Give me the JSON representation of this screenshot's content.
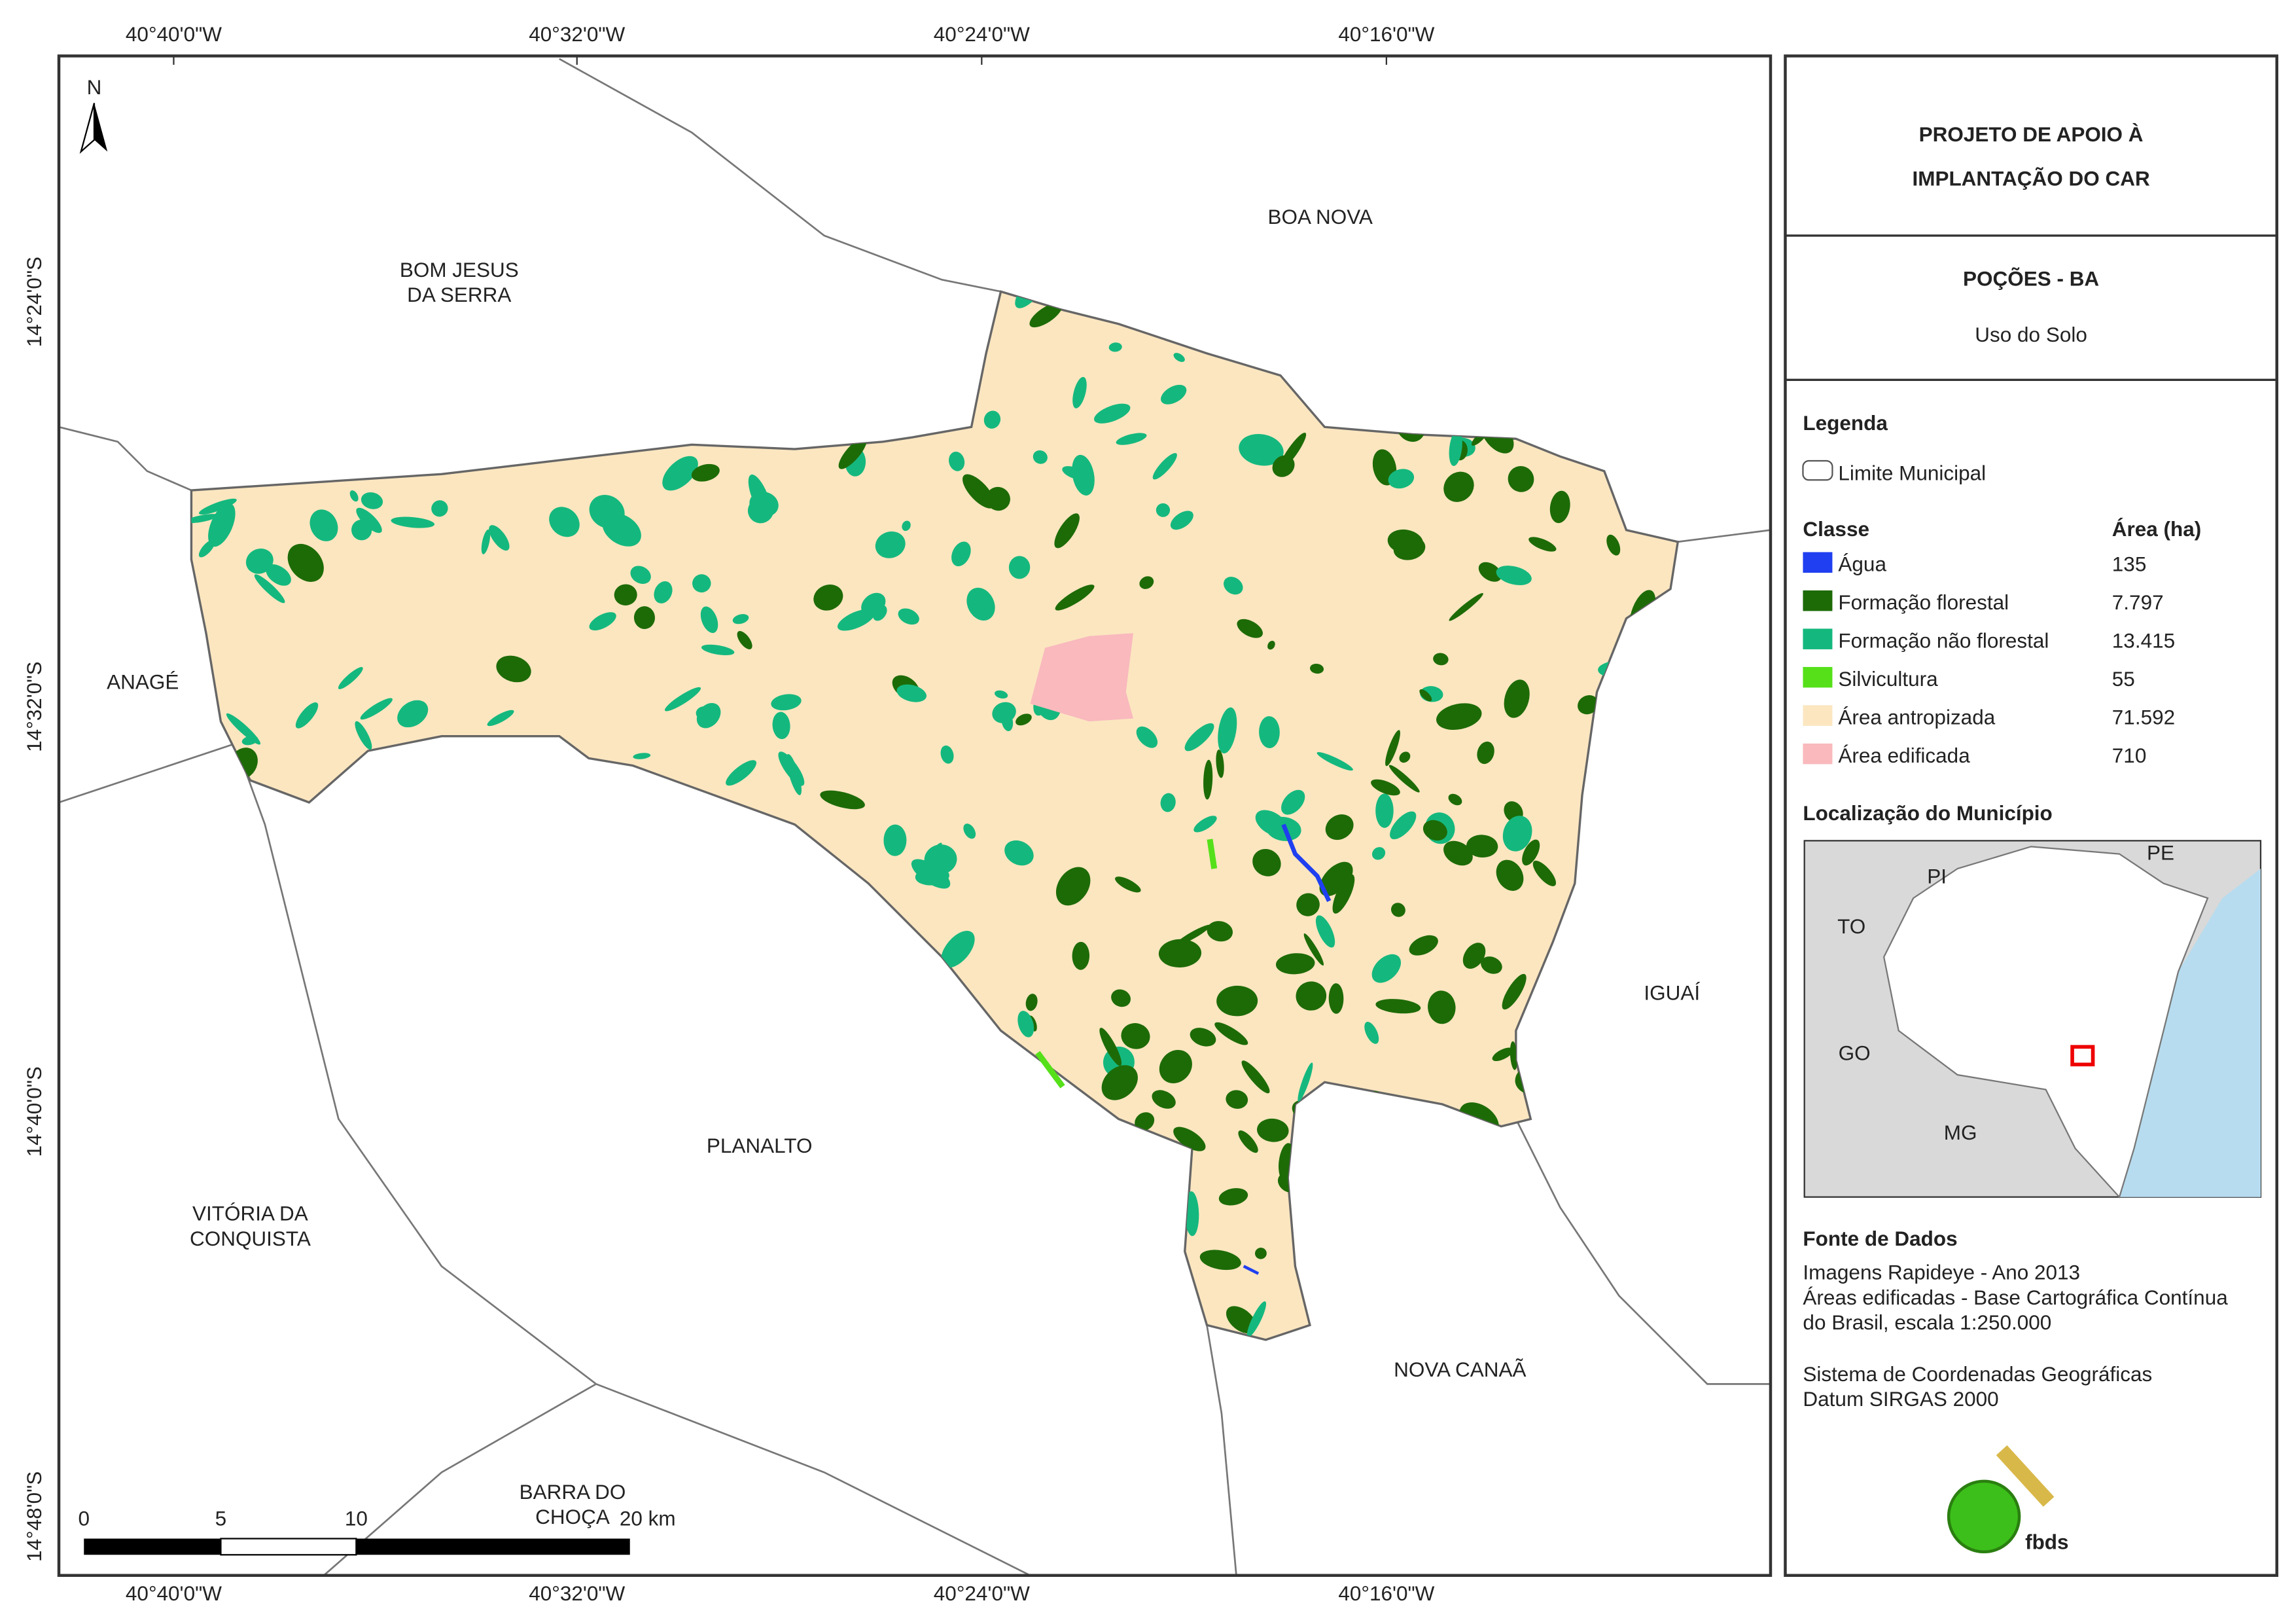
{
  "map": {
    "coordinates": {
      "top": [
        "40°40'0\"W",
        "40°32'0\"W",
        "40°24'0\"W",
        "40°16'0\"W"
      ],
      "bottom": [
        "40°40'0\"W",
        "40°32'0\"W",
        "40°24'0\"W",
        "40°16'0\"W"
      ],
      "left": [
        "14°24'0\"S",
        "14°32'0\"S",
        "14°40'0\"S",
        "14°48'0\"S"
      ]
    },
    "places": [
      {
        "lines": [
          "BOM JESUS",
          "DA SERRA"
        ]
      },
      {
        "lines": [
          "BOA NOVA"
        ]
      },
      {
        "lines": [
          "ANAGÉ"
        ]
      },
      {
        "lines": [
          "IGUAÍ"
        ]
      },
      {
        "lines": [
          "PLANALTO"
        ]
      },
      {
        "lines": [
          "VITÓRIA DA",
          "CONQUISTA"
        ]
      },
      {
        "lines": [
          "NOVA CANAÃ"
        ]
      },
      {
        "lines": [
          "BARRA DO",
          "CHOÇA"
        ]
      }
    ],
    "north": "N",
    "scale_bar": [
      "0",
      "5",
      "10",
      "20 km"
    ]
  },
  "panel": {
    "title": [
      "PROJETO DE APOIO À",
      "IMPLANTAÇÃO DO CAR"
    ],
    "subtitle": "POÇÕES - BA",
    "theme": "Uso do Solo"
  },
  "legend": {
    "heading": "Legenda",
    "boundary": "Limite Municipal",
    "class_header": "Classe",
    "area_header": "Área (ha)",
    "classes": [
      {
        "name": "Água",
        "area": "135",
        "color": "#1f3ff0"
      },
      {
        "name": "Formação florestal",
        "area": "7.797",
        "color": "#1d6b07"
      },
      {
        "name": "Formação não florestal",
        "area": "13.415",
        "color": "#14b87e"
      },
      {
        "name": "Silvicultura",
        "area": "55",
        "color": "#55e01a"
      },
      {
        "name": "Área antropizada",
        "area": "71.592",
        "color": "#fbe6c0"
      },
      {
        "name": "Área edificada",
        "area": "710",
        "color": "#f9b9bd"
      }
    ]
  },
  "location": {
    "heading": "Localização do Município",
    "labels": [
      "PI",
      "PE",
      "TO",
      "GO",
      "MG"
    ]
  },
  "sources": {
    "heading": "Fonte de Dados",
    "lines": [
      "Imagens Rapideye - Ano 2013",
      "Áreas edificadas - Base Cartográfica Contínua",
      "do Brasil, escala 1:250.000",
      "Sistema de Coordenadas Geográficas",
      "Datum SIRGAS 2000"
    ]
  },
  "logo": "fbds"
}
